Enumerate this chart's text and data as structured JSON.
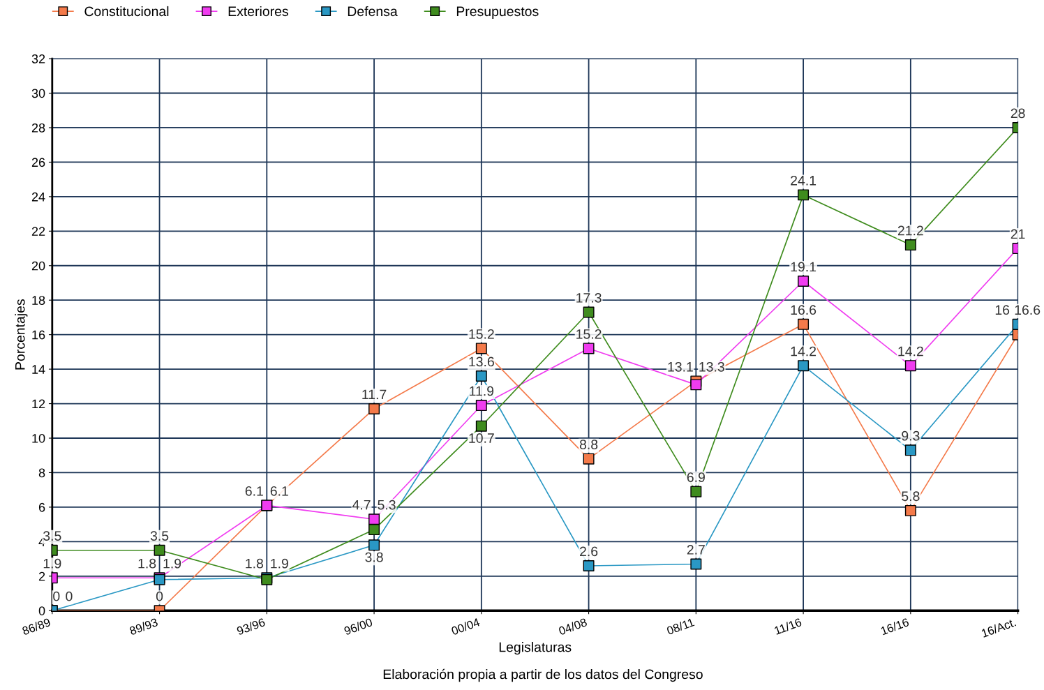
{
  "chart_data": {
    "type": "line",
    "xlabel": "Legislaturas",
    "ylabel": "Porcentajes",
    "annotations": [
      "Elaboración propia a partir de los datos del Congreso"
    ],
    "categories": [
      "86/89",
      "89/93",
      "93/96",
      "96/00",
      "00/04",
      "04/08",
      "08/11",
      "11/16",
      "16/16",
      "16/Act."
    ],
    "series": [
      {
        "name": "Constitucional",
        "color": "#f47a4a",
        "values": [
          0,
          0,
          6.1,
          11.7,
          15.2,
          8.8,
          13.3,
          16.6,
          5.8,
          16
        ]
      },
      {
        "name": "Exteriores",
        "color": "#f03cf0",
        "values": [
          1.9,
          1.9,
          6.1,
          5.3,
          11.9,
          15.2,
          13.1,
          19.1,
          14.2,
          21
        ]
      },
      {
        "name": "Defensa",
        "color": "#2a98c4",
        "values": [
          0,
          1.8,
          1.9,
          3.8,
          13.6,
          2.6,
          2.7,
          14.2,
          9.3,
          16.6
        ]
      },
      {
        "name": "Presupuestos",
        "color": "#3f8c1e",
        "values": [
          3.5,
          3.5,
          1.8,
          4.7,
          10.7,
          17.3,
          6.9,
          24.1,
          21.2,
          28
        ]
      }
    ],
    "ylim": [
      0,
      32
    ],
    "yticks": [
      0,
      2,
      4,
      6,
      8,
      10,
      12,
      14,
      16,
      18,
      20,
      22,
      24,
      26,
      28,
      30,
      32
    ],
    "grid": true,
    "legend": "top left",
    "marker": "square",
    "line_style": "solid",
    "data_labels": true
  }
}
